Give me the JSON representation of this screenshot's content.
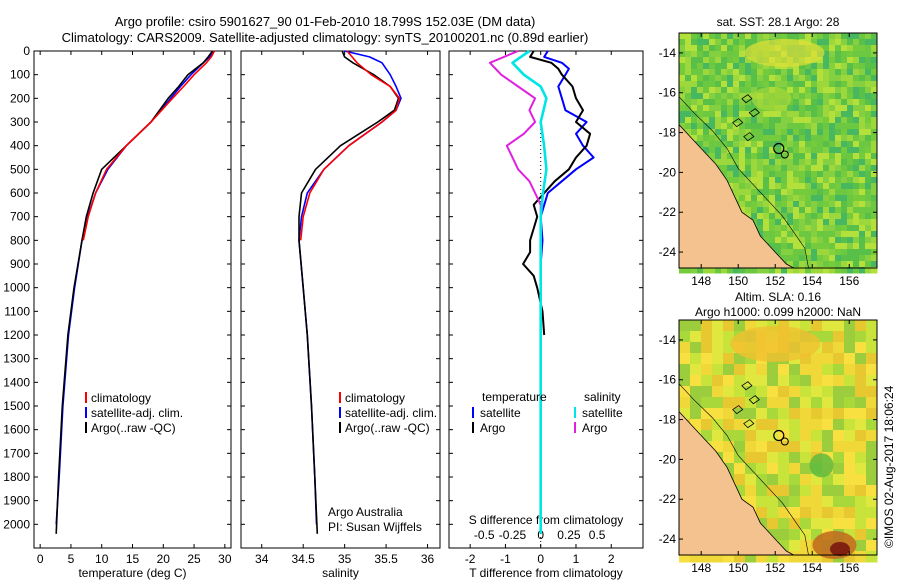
{
  "header": {
    "line1": "Argo profile: csiro 5901627_90 01-Feb-2010 18.799S 152.03E (DM data)",
    "line2": "Climatology: CARS2009. Satellite-adjusted climatology: synTS_20100201.nc (0.89d earlier)"
  },
  "colors": {
    "climatology": "#ff0000",
    "satellite": "#0000ff",
    "argo": "#000000",
    "sat_salinity": "#00e5e5",
    "argo_salinity": "#e020e0",
    "land": "#f4c28e"
  },
  "chart_data": [
    {
      "type": "line",
      "id": "temperature",
      "xlabel": "temperature (deg C)",
      "ylabel": "",
      "xlim": [
        -1,
        31
      ],
      "ylim": [
        2100,
        0
      ],
      "xticks": [
        0,
        5,
        10,
        15,
        20,
        25,
        30
      ],
      "yticks": [
        0,
        100,
        200,
        300,
        400,
        500,
        600,
        700,
        800,
        900,
        1000,
        1100,
        1200,
        1300,
        1400,
        1500,
        1600,
        1700,
        1800,
        1900,
        2000
      ],
      "legend": [
        "climatology",
        "satellite-adj. clim.",
        "Argo(..raw -QC)"
      ],
      "series": [
        {
          "name": "climatology",
          "color": "#ff0000",
          "depth": [
            0,
            25,
            50,
            100,
            150,
            200,
            300,
            400,
            500,
            600,
            700,
            800
          ],
          "values": [
            28.3,
            27.8,
            27.0,
            25.0,
            23.3,
            21.5,
            18.0,
            14.0,
            10.8,
            9.0,
            7.8,
            7.0
          ]
        },
        {
          "name": "satellite-adj. clim.",
          "color": "#0000ff",
          "depth": [
            0,
            25,
            50,
            100,
            150,
            200,
            300,
            400,
            500,
            600,
            700,
            800,
            1000,
            1200,
            1500,
            1800,
            2000
          ],
          "values": [
            28.3,
            27.5,
            26.5,
            24.5,
            22.8,
            21.2,
            18.0,
            14.0,
            11.0,
            9.0,
            7.7,
            6.8,
            5.6,
            4.6,
            3.7,
            3.1,
            2.6
          ]
        },
        {
          "name": "Argo(..raw -QC)",
          "color": "#000000",
          "depth": [
            0,
            25,
            50,
            100,
            150,
            200,
            300,
            400,
            500,
            600,
            700,
            800,
            1000,
            1200,
            1500,
            1800,
            2040
          ],
          "values": [
            28.0,
            27.3,
            26.5,
            24.0,
            22.5,
            20.8,
            18.0,
            14.0,
            10.0,
            8.6,
            7.5,
            6.8,
            5.5,
            4.5,
            3.6,
            3.0,
            2.6
          ]
        }
      ]
    },
    {
      "type": "line",
      "id": "salinity",
      "xlabel": "salinity",
      "xlim": [
        33.75,
        36.15
      ],
      "ylim": [
        2100,
        0
      ],
      "xticks": [
        34,
        34.5,
        35,
        35.5,
        36
      ],
      "xtick_labels": [
        "34",
        "34.5",
        "35",
        "35.5",
        "36"
      ],
      "legend": [
        "climatology",
        "satellite-adj. clim.",
        "Argo(..raw -QC)"
      ],
      "annotation": [
        "Argo Australia",
        "PI: Susan Wijffels"
      ],
      "series": [
        {
          "name": "climatology",
          "color": "#ff0000",
          "depth": [
            0,
            50,
            100,
            150,
            200,
            250,
            300,
            400,
            500,
            600,
            700,
            800
          ],
          "values": [
            35.03,
            35.15,
            35.32,
            35.55,
            35.66,
            35.62,
            35.45,
            35.05,
            34.75,
            34.58,
            34.5,
            34.47
          ]
        },
        {
          "name": "satellite-adj. clim.",
          "color": "#0000ff",
          "depth": [
            0,
            25,
            50,
            100,
            150,
            200,
            250,
            300,
            400,
            500,
            600,
            700,
            800,
            1000,
            1200,
            1500,
            1800,
            2000
          ],
          "values": [
            35.0,
            35.3,
            35.45,
            35.55,
            35.62,
            35.68,
            35.62,
            35.45,
            35.05,
            34.75,
            34.55,
            34.48,
            34.45,
            34.5,
            34.55,
            34.6,
            34.64,
            34.66
          ]
        },
        {
          "name": "Argo(..raw -QC)",
          "color": "#000000",
          "depth": [
            0,
            25,
            50,
            100,
            150,
            200,
            250,
            300,
            400,
            500,
            600,
            700,
            800,
            1000,
            1200,
            1500,
            1800,
            2040
          ],
          "values": [
            34.97,
            35.0,
            35.1,
            35.35,
            35.55,
            35.65,
            35.6,
            35.4,
            34.95,
            34.65,
            34.48,
            34.45,
            34.45,
            34.5,
            34.55,
            34.6,
            34.64,
            34.67
          ]
        }
      ]
    },
    {
      "type": "line",
      "id": "differences",
      "xlabel": "T difference from climatology",
      "xlabel_top": "S difference from climatology",
      "xlim": [
        -2.6,
        2.9
      ],
      "ylim": [
        2100,
        0
      ],
      "xticks": [
        -2,
        -1,
        0,
        1,
        2
      ],
      "xtick_labels": [
        "-2",
        "-1",
        "0",
        "1",
        "2"
      ],
      "sticks": [
        -0.5,
        -0.25,
        0,
        0.25,
        0.5
      ],
      "stick_labels": [
        "-0.5",
        "-0.25",
        "0",
        "0.25",
        "0.5"
      ],
      "legend_temperature_title": "temperature",
      "legend_salinity_title": "salinity",
      "legend_temperature": [
        "satellite",
        "Argo"
      ],
      "legend_salinity": [
        "satellite",
        "Argo"
      ],
      "series": [
        {
          "name": "T satellite",
          "color": "#0000ff",
          "depth": [
            0,
            25,
            50,
            75,
            100,
            150,
            200,
            250,
            300,
            350,
            400,
            450,
            500,
            550,
            600,
            700,
            800,
            900,
            1000,
            1100,
            1200
          ],
          "values": [
            0.2,
            0.1,
            0.6,
            0.8,
            0.7,
            0.5,
            0.6,
            0.7,
            1.3,
            1.0,
            1.2,
            1.5,
            1.0,
            0.6,
            0.2,
            0.0,
            0.05,
            0.0,
            0.0,
            0.0,
            0.0
          ]
        },
        {
          "name": "T Argo",
          "color": "#000000",
          "depth": [
            0,
            25,
            50,
            75,
            100,
            150,
            200,
            250,
            300,
            350,
            400,
            450,
            500,
            550,
            600,
            650,
            700,
            750,
            800,
            850,
            900,
            950,
            1000,
            1100,
            1200
          ],
          "values": [
            -0.2,
            -0.3,
            0.3,
            0.5,
            0.6,
            0.9,
            1.0,
            1.2,
            1.0,
            1.4,
            1.3,
            1.0,
            0.8,
            0.4,
            0.1,
            -0.2,
            -0.1,
            -0.2,
            -0.3,
            -0.3,
            -0.5,
            -0.2,
            -0.1,
            0.05,
            0.1
          ]
        },
        {
          "name": "S satellite",
          "color": "#00e5e5",
          "depth": [
            0,
            50,
            100,
            150,
            200,
            300,
            400,
            500,
            600,
            700,
            800,
            1000,
            1200,
            1500,
            1800,
            2040
          ],
          "values": [
            -0.1,
            -0.25,
            -0.15,
            0.0,
            0.05,
            0.0,
            0.03,
            0.05,
            0.02,
            0.0,
            0.0,
            0.0,
            0.0,
            0.0,
            0.0,
            0.0
          ]
        },
        {
          "name": "S Argo",
          "color": "#e020e0",
          "depth": [
            0,
            50,
            100,
            150,
            200,
            250,
            300,
            350,
            400,
            450,
            500,
            550,
            600,
            650,
            700
          ],
          "values": [
            -0.2,
            -0.45,
            -0.35,
            -0.2,
            -0.05,
            -0.1,
            -0.05,
            -0.15,
            -0.3,
            -0.25,
            -0.2,
            -0.1,
            -0.05,
            0.0,
            0.0
          ]
        }
      ]
    }
  ],
  "maps": [
    {
      "id": "sst-map",
      "title": "sat. SST: 28.1  Argo: 28",
      "xticks": [
        148,
        150,
        152,
        154,
        156
      ],
      "yticks": [
        -14,
        -16,
        -18,
        -20,
        -22,
        -24
      ],
      "xtick_labels": [
        "148",
        "150",
        "152",
        "154",
        "156"
      ],
      "ytick_labels": [
        "-14",
        "-16",
        "-18",
        "-20",
        "-22",
        "-24"
      ],
      "argo_position": [
        152.03,
        -18.799
      ]
    },
    {
      "id": "sla-map",
      "title_line1": "Altim. SLA: 0.16",
      "title_line2": "Argo h1000: 0.099  h2000: NaN",
      "xticks": [
        148,
        150,
        152,
        154,
        156
      ],
      "yticks": [
        -14,
        -16,
        -18,
        -20,
        -22,
        -24
      ],
      "xtick_labels": [
        "148",
        "150",
        "152",
        "154",
        "156"
      ],
      "ytick_labels": [
        "-14",
        "-16",
        "-18",
        "-20",
        "-22",
        "-24"
      ],
      "argo_position": [
        152.03,
        -18.799
      ]
    }
  ],
  "footer": {
    "stamp": "©IMOS 02-Aug-2017 18:06:24"
  }
}
